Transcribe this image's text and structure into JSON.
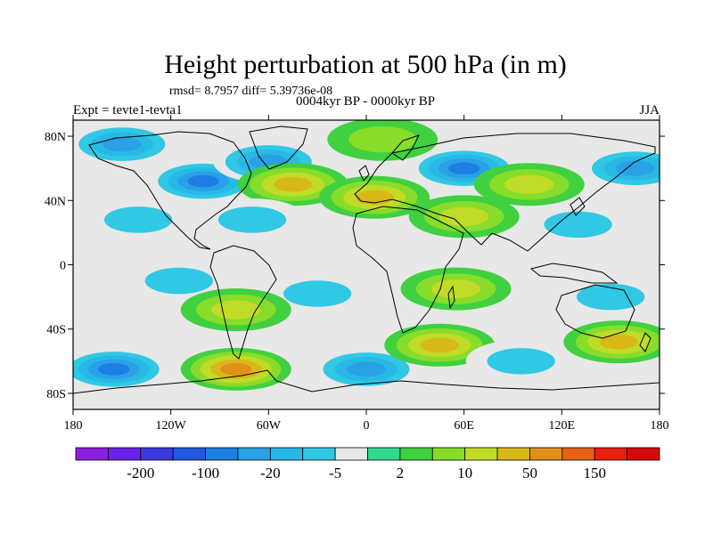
{
  "chart_data": {
    "type": "heatmap",
    "title": "Height perturbation at 500 hPa (in m)",
    "stats_line": "rmsd= 8.7957 diff= 5.39736e-08",
    "subtitle": "0004kyr BP - 0000kyr BP",
    "left_label": "Expt = tevte1-tevta1",
    "right_label": "JJA",
    "x_ticks": [
      "180",
      "120W",
      "60W",
      "0",
      "60E",
      "120E",
      "180"
    ],
    "x_tick_values": [
      -180,
      -120,
      -60,
      0,
      60,
      120,
      180
    ],
    "y_ticks": [
      "80N",
      "40N",
      "0",
      "40S",
      "80S"
    ],
    "y_tick_values": [
      80,
      40,
      0,
      -40,
      -80
    ],
    "xlim": [
      -180,
      180
    ],
    "ylim": [
      -90,
      90
    ],
    "colorbar": {
      "levels": [
        -500,
        -200,
        -150,
        -100,
        -50,
        -20,
        -10,
        -5,
        -2,
        2,
        5,
        10,
        20,
        50,
        100,
        150,
        200
      ],
      "labels": [
        "-200",
        "-100",
        "-20",
        "-5",
        "2",
        "10",
        "50",
        "150"
      ],
      "colors": [
        "#8c1ee0",
        "#6a22e8",
        "#3a3ae0",
        "#2258e0",
        "#1e7ee6",
        "#2aa0e6",
        "#28b8e6",
        "#30c8e4",
        "#e8e8e8",
        "#30d890",
        "#40d040",
        "#88dc2a",
        "#c0dc28",
        "#d8b818",
        "#e09018",
        "#e86018",
        "#e81e10",
        "#d80808"
      ]
    },
    "blobs": [
      {
        "lon": -150,
        "lat": 75,
        "value": -20
      },
      {
        "lon": -100,
        "lat": 52,
        "value": -50
      },
      {
        "lon": -60,
        "lat": 64,
        "value": -20
      },
      {
        "lon": -45,
        "lat": 50,
        "value": 20
      },
      {
        "lon": 10,
        "lat": 78,
        "value": 5
      },
      {
        "lon": 60,
        "lat": 60,
        "value": -50
      },
      {
        "lon": 5,
        "lat": 42,
        "value": 20
      },
      {
        "lon": 100,
        "lat": 50,
        "value": 10
      },
      {
        "lon": 165,
        "lat": 60,
        "value": -20
      },
      {
        "lon": -140,
        "lat": 28,
        "value": -5
      },
      {
        "lon": -70,
        "lat": 28,
        "value": -5
      },
      {
        "lon": 60,
        "lat": 30,
        "value": 10
      },
      {
        "lon": 130,
        "lat": 25,
        "value": -5
      },
      {
        "lon": -115,
        "lat": -10,
        "value": -5
      },
      {
        "lon": -30,
        "lat": -18,
        "value": -5
      },
      {
        "lon": -80,
        "lat": -28,
        "value": 10
      },
      {
        "lon": 150,
        "lat": -20,
        "value": -5
      },
      {
        "lon": -155,
        "lat": -65,
        "value": -50
      },
      {
        "lon": -80,
        "lat": -65,
        "value": 50
      },
      {
        "lon": 0,
        "lat": -65,
        "value": -20
      },
      {
        "lon": 45,
        "lat": -50,
        "value": 20
      },
      {
        "lon": 55,
        "lat": -15,
        "value": 10
      },
      {
        "lon": 95,
        "lat": -60,
        "value": -5
      },
      {
        "lon": 155,
        "lat": -48,
        "value": 20
      }
    ]
  }
}
